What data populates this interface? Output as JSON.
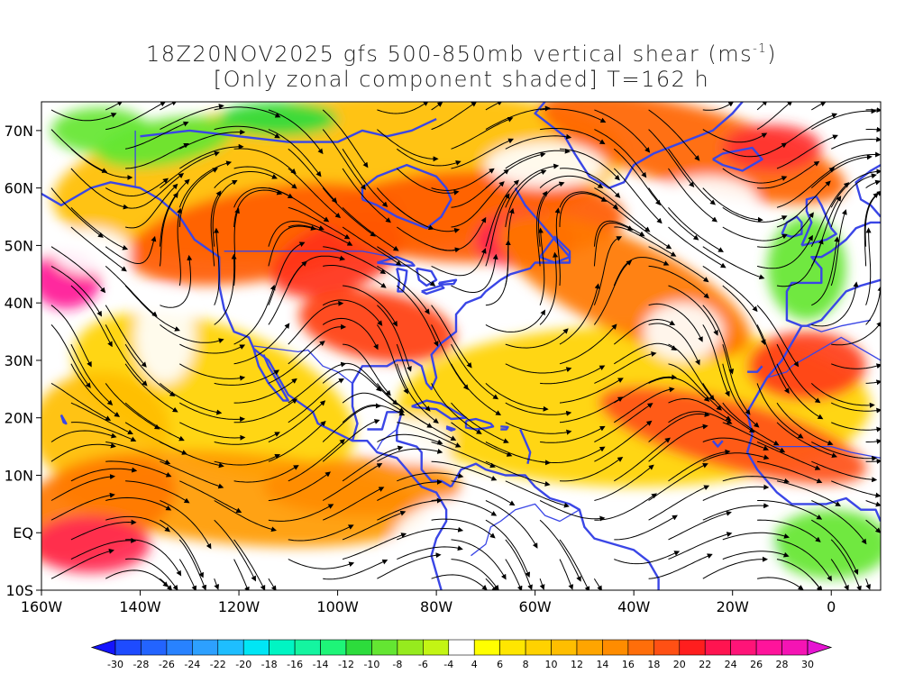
{
  "title": {
    "line1_prefix": "18Z20NOV2025 gfs 500-850mb vertical shear (ms",
    "line1_sup": "-1",
    "line1_suffix": ")",
    "line2": "[Only zonal component shaded] T=162 h"
  },
  "map": {
    "lon_range": [
      -160,
      10
    ],
    "lat_range": [
      -10,
      75
    ],
    "lat_ticks": [
      {
        "value": 70,
        "label": "70N"
      },
      {
        "value": 60,
        "label": "60N"
      },
      {
        "value": 50,
        "label": "50N"
      },
      {
        "value": 40,
        "label": "40N"
      },
      {
        "value": 30,
        "label": "30N"
      },
      {
        "value": 20,
        "label": "20N"
      },
      {
        "value": 10,
        "label": "10N"
      },
      {
        "value": 0,
        "label": "EQ"
      },
      {
        "value": -10,
        "label": "10S"
      }
    ],
    "lon_ticks": [
      {
        "value": -160,
        "label": "160W"
      },
      {
        "value": -140,
        "label": "140W"
      },
      {
        "value": -120,
        "label": "120W"
      },
      {
        "value": -100,
        "label": "100W"
      },
      {
        "value": -80,
        "label": "80W"
      },
      {
        "value": -60,
        "label": "60W"
      },
      {
        "value": -40,
        "label": "40W"
      },
      {
        "value": -20,
        "label": "20W"
      },
      {
        "value": 0,
        "label": "0"
      }
    ],
    "coastline_color": "#3a46e6",
    "streamline_color": "#000000"
  },
  "colorbar": {
    "labels": [
      "-30",
      "-28",
      "-26",
      "-24",
      "-22",
      "-20",
      "-18",
      "-16",
      "-14",
      "-12",
      "-10",
      "-8",
      "-6",
      "-4",
      "4",
      "6",
      "8",
      "10",
      "12",
      "14",
      "16",
      "18",
      "20",
      "22",
      "24",
      "26",
      "28",
      "30"
    ],
    "colors": [
      "#1414ff",
      "#1e4bff",
      "#2364ff",
      "#2882ff",
      "#2da0ff",
      "#1ebeff",
      "#00e6f5",
      "#00f5c3",
      "#14f5a0",
      "#1ef578",
      "#2ddc3c",
      "#64e632",
      "#96eb1e",
      "#c3f514",
      "#ffffff",
      "#ffff00",
      "#ffe600",
      "#ffd200",
      "#ffbe00",
      "#ffa500",
      "#ff8c00",
      "#ff6e0a",
      "#ff5014",
      "#ff1e1e",
      "#ff1450",
      "#ff1478",
      "#ff149b",
      "#f514b4",
      "#e614d2"
    ]
  }
}
